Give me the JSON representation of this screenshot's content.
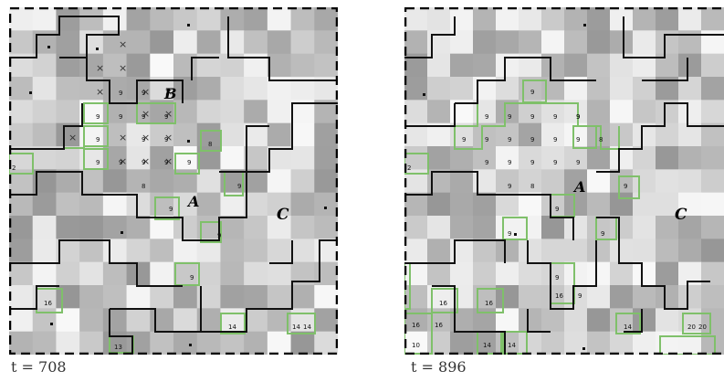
{
  "panels": [
    {
      "id": "left",
      "time_label": "t = 708",
      "regions": [
        "B",
        "A",
        "C"
      ],
      "numbers": [
        "9",
        "9",
        "9",
        "9",
        "9",
        "9",
        "9",
        "9",
        "9",
        "9",
        "9",
        "9",
        "9",
        "9",
        "8",
        "2",
        "8",
        "9",
        "9",
        "9",
        "9",
        "16",
        "14",
        "14",
        "14",
        "13"
      ]
    },
    {
      "id": "right",
      "time_label": "t = 896",
      "regions": [
        "A",
        "C"
      ],
      "numbers": [
        "9",
        "9",
        "9",
        "9",
        "9",
        "9",
        "9",
        "9",
        "9",
        "9",
        "9",
        "9",
        "9",
        "9",
        "9",
        "9",
        "9",
        "9",
        "9",
        "8",
        "2",
        "8",
        "9",
        "9",
        "9",
        "9",
        "9",
        "9",
        "16",
        "16",
        "16",
        "16",
        "16",
        "10",
        "14",
        "14",
        "14",
        "20",
        "20"
      ]
    }
  ],
  "colors": {
    "boundary": "#111111",
    "green_outline": "#7fc06a",
    "frame_dash": "#000000"
  }
}
